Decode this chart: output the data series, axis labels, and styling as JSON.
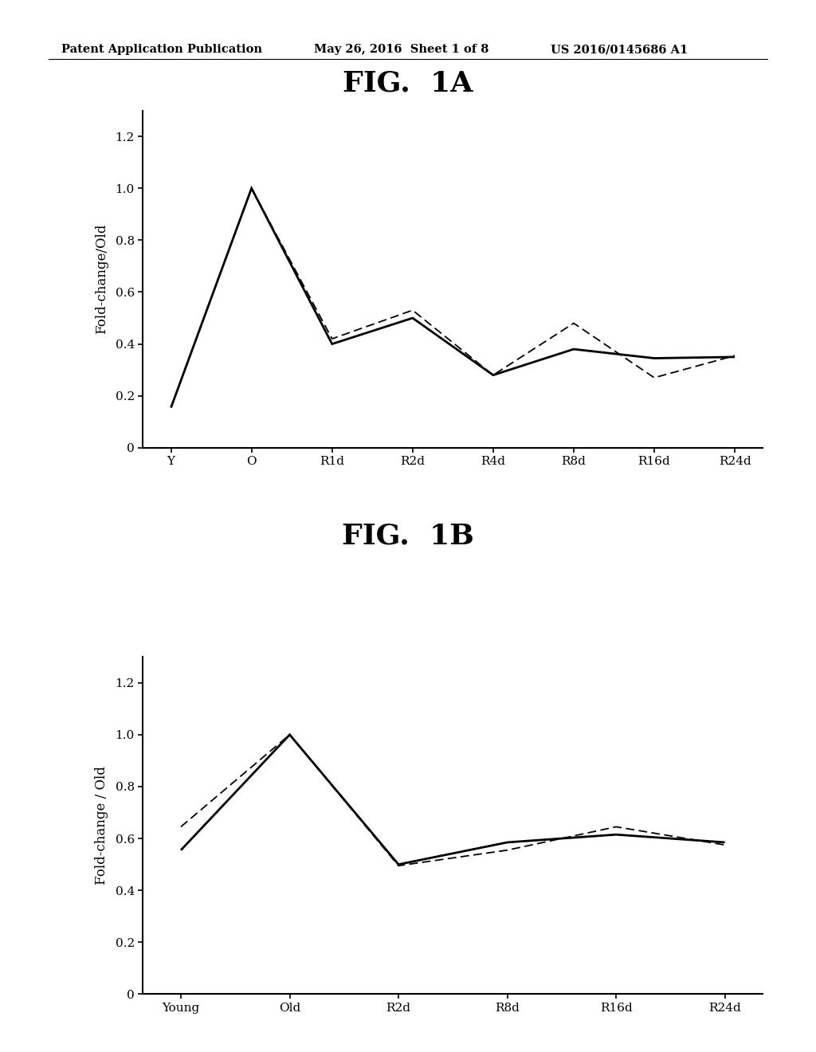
{
  "fig1a_title": "FIG.  1A",
  "fig1b_title": "FIG.  1B",
  "header_left": "Patent Application Publication",
  "header_mid": "May 26, 2016  Sheet 1 of 8",
  "header_right": "US 2016/0145686 A1",
  "fig1a_xticks": [
    "Y",
    "O",
    "R1d",
    "R2d",
    "R4d",
    "R8d",
    "R16d",
    "R24d"
  ],
  "fig1a_solid": [
    0.155,
    1.0,
    0.4,
    0.5,
    0.28,
    0.38,
    0.345,
    0.35
  ],
  "fig1a_dashed": [
    0.155,
    1.0,
    0.42,
    0.53,
    0.28,
    0.48,
    0.27,
    0.355
  ],
  "fig1a_ylabel": "Fold-change/Old",
  "fig1a_ylim": [
    0,
    1.3
  ],
  "fig1a_yticks": [
    0,
    0.2,
    0.4,
    0.6,
    0.8,
    1.0,
    1.2
  ],
  "fig1b_xticks": [
    "Young",
    "Old",
    "R2d",
    "R8d",
    "R16d",
    "R24d"
  ],
  "fig1b_solid": [
    0.555,
    1.0,
    0.5,
    0.585,
    0.615,
    0.585
  ],
  "fig1b_dashed": [
    0.645,
    1.0,
    0.495,
    0.555,
    0.645,
    0.575
  ],
  "fig1b_ylabel": "Fold-change / Old",
  "fig1b_ylim": [
    0,
    1.3
  ],
  "fig1b_yticks": [
    0,
    0.2,
    0.4,
    0.6,
    0.8,
    1.0,
    1.2
  ],
  "line_color": "#000000",
  "bg_color": "#ffffff",
  "fig1a_title_fontsize": 26,
  "fig1b_title_fontsize": 26,
  "axis_fontsize": 12,
  "tick_fontsize": 11,
  "header_fontsize": 10.5
}
